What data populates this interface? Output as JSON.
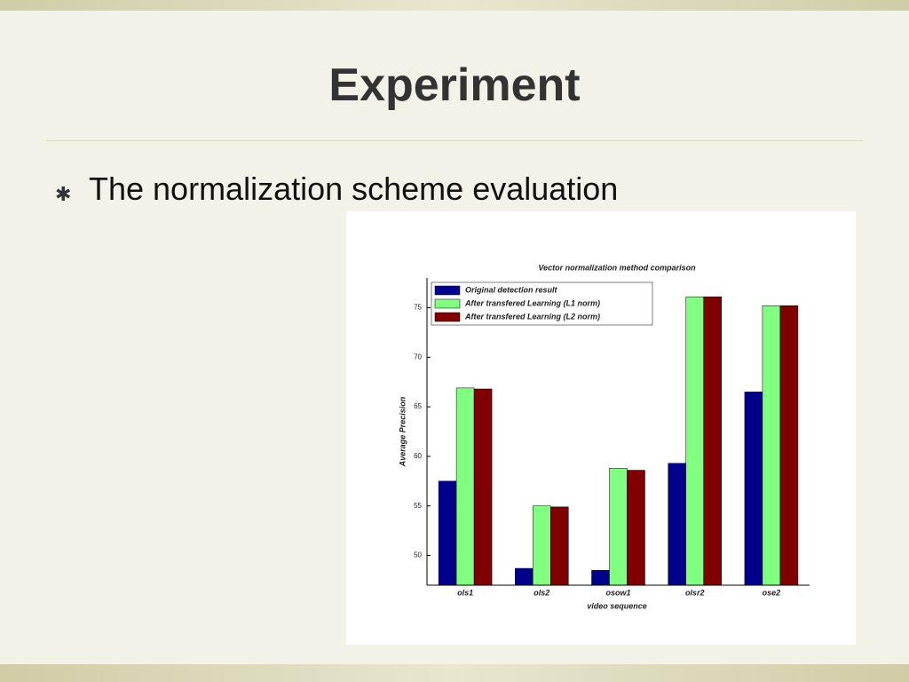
{
  "slide": {
    "title": "Experiment",
    "bullet": "The normalization scheme evaluation"
  },
  "chart_data": {
    "type": "bar",
    "title": "Vector normalization method comparison",
    "xlabel": "video sequence",
    "ylabel": "Average Precision",
    "categories": [
      "ols1",
      "ols2",
      "osow1",
      "olsr2",
      "ose2"
    ],
    "series": [
      {
        "name": "Original detection result",
        "color": "#00008b",
        "values": [
          57.5,
          48.7,
          48.5,
          59.3,
          66.5
        ]
      },
      {
        "name": "After transfered Learning (L1 norm)",
        "color": "#80ff80",
        "values": [
          66.9,
          55.0,
          58.8,
          76.1,
          75.2
        ]
      },
      {
        "name": "After transfered Learning (L2 norm)",
        "color": "#800000",
        "values": [
          66.8,
          54.9,
          58.6,
          76.1,
          75.2
        ]
      }
    ],
    "ylim": [
      47,
      78
    ],
    "yticks": [
      50,
      55,
      60,
      65,
      70,
      75
    ],
    "legend": "upper left"
  }
}
